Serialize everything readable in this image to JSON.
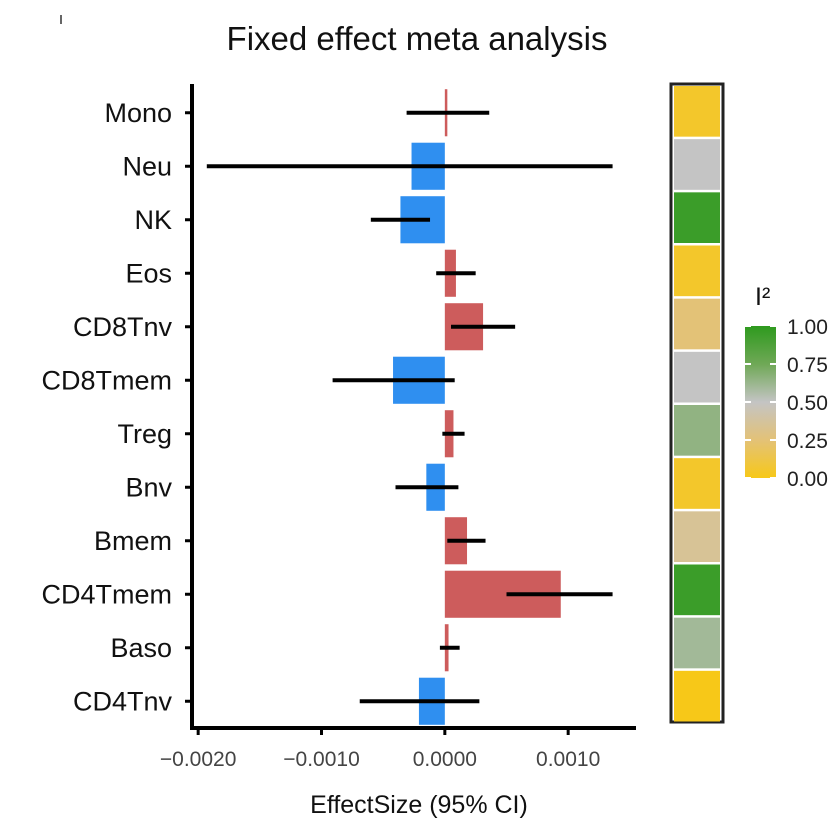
{
  "chart_data": {
    "type": "forest",
    "title": "Fixed effect meta analysis",
    "xlabel": "EffectSize (95% CI)",
    "ylabel": "",
    "xlim": [
      -0.00205,
      0.00155
    ],
    "xticks": [
      -0.002,
      -0.001,
      0.0,
      0.001
    ],
    "xtick_labels": [
      "−0.0020",
      "−0.0010",
      "0.0000",
      "0.0010"
    ],
    "categories": [
      "Mono",
      "Neu",
      "NK",
      "Eos",
      "CD8Tnv",
      "CD8Tmem",
      "Treg",
      "Bnv",
      "Bmem",
      "CD4Tmem",
      "Baso",
      "CD4Tnv"
    ],
    "effect": [
      1e-05,
      -0.00027,
      -0.00036,
      9e-05,
      0.00031,
      -0.00042,
      7e-05,
      -0.00015,
      0.00018,
      0.00094,
      3e-05,
      -0.00021
    ],
    "ci_low": [
      -0.00031,
      -0.00193,
      -0.0006,
      -7e-05,
      5e-05,
      -0.00091,
      -2e-05,
      -0.0004,
      2e-05,
      0.0005,
      -4e-05,
      -0.00069
    ],
    "ci_high": [
      0.00036,
      0.00136,
      -0.00012,
      0.00025,
      0.00057,
      8e-05,
      0.00016,
      0.00011,
      0.00033,
      0.00136,
      0.00012,
      0.00028
    ],
    "i2": [
      0.05,
      0.5,
      0.95,
      0.05,
      0.25,
      0.5,
      0.65,
      0.05,
      0.35,
      0.95,
      0.6,
      0.0
    ],
    "positive_color": "#CD5C5C",
    "negative_color": "#2F8FF0",
    "legend": {
      "title": "I²",
      "ticks": [
        0.0,
        0.25,
        0.5,
        0.75,
        1.0
      ],
      "tick_labels": [
        "0.00",
        "0.25",
        "0.50",
        "0.75",
        "1.00"
      ],
      "gradient_colors": [
        "#F7C818",
        "#E3C277",
        "#C4C4C4",
        "#6FA856",
        "#2E9A1E"
      ]
    }
  }
}
